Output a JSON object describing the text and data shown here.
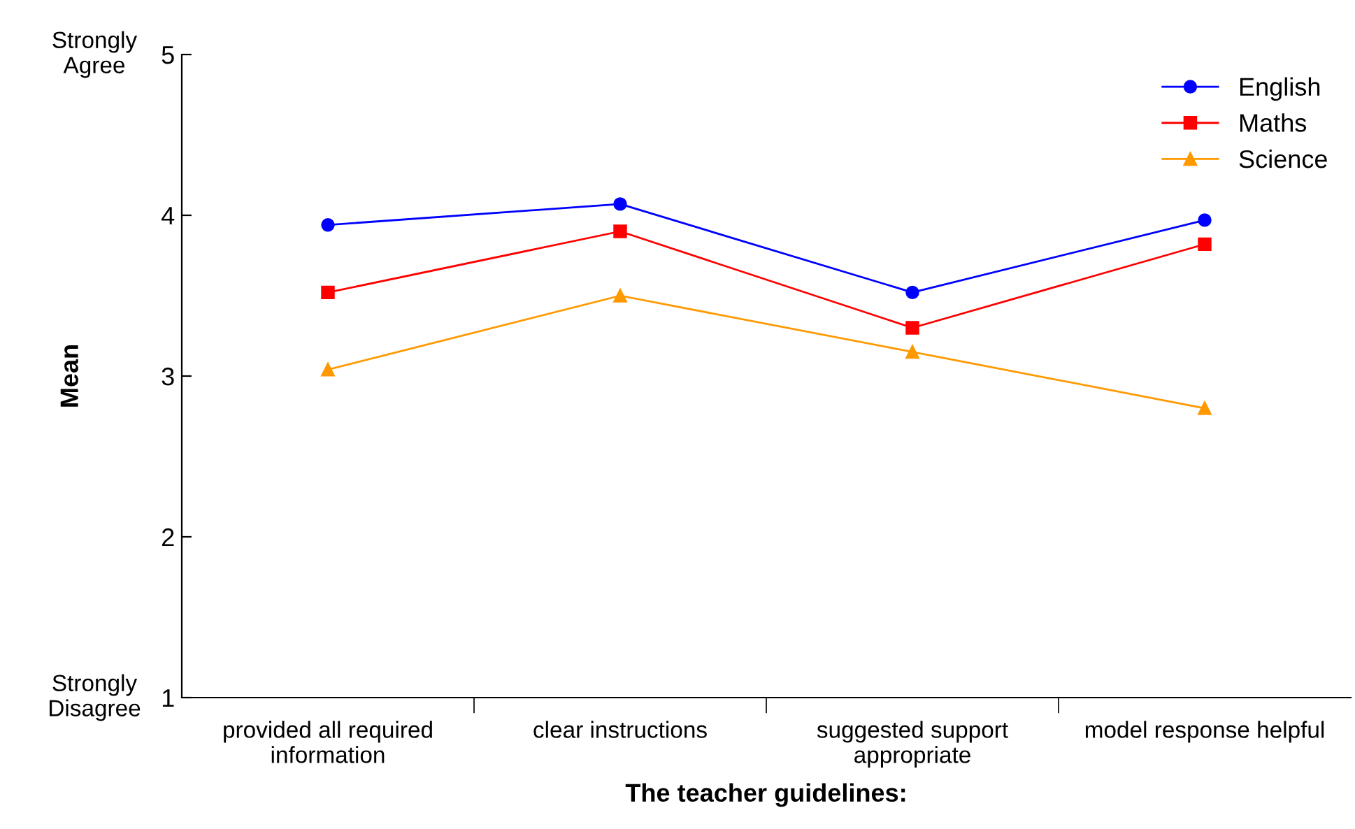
{
  "chart_data": {
    "type": "line",
    "xlabel": "The teacher guidelines:",
    "ylabel": "Mean",
    "categories": [
      "provided all required\ninformation",
      "clear instructions",
      "suggested support\nappropriate",
      "model response helpful"
    ],
    "series": [
      {
        "name": "English",
        "color": "#0000ff",
        "marker": "circle",
        "values": [
          3.94,
          4.07,
          3.52,
          3.97
        ]
      },
      {
        "name": "Maths",
        "color": "#ff0000",
        "marker": "square",
        "values": [
          3.52,
          3.9,
          3.3,
          3.82
        ]
      },
      {
        "name": "Science",
        "color": "#ff9900",
        "marker": "triangle",
        "values": [
          3.04,
          3.5,
          3.15,
          2.8
        ]
      }
    ],
    "ylim": [
      1,
      5
    ],
    "yticks": [
      1,
      2,
      3,
      4,
      5
    ],
    "annotations": [
      "Strongly\nAgree",
      "Strongly\nDisagree"
    ],
    "legend": "top right",
    "grid": false,
    "line_style": "solid"
  }
}
